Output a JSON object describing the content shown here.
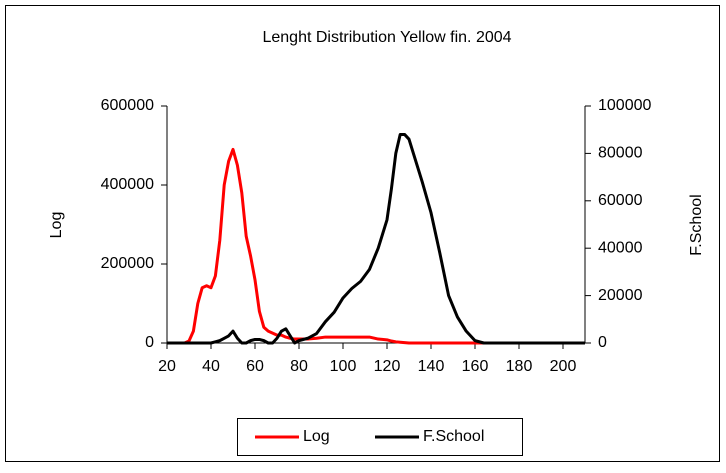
{
  "chart_data": {
    "type": "line",
    "title": "Lenght Distribution Yellow fin. 2004",
    "y_label": "Log",
    "y2_label": "F.School",
    "x": [
      20,
      24,
      28,
      30,
      32,
      34,
      36,
      38,
      40,
      42,
      44,
      46,
      48,
      50,
      52,
      54,
      56,
      58,
      60,
      62,
      64,
      66,
      68,
      70,
      72,
      74,
      76,
      78,
      80,
      84,
      88,
      92,
      96,
      100,
      104,
      108,
      112,
      116,
      120,
      122,
      124,
      126,
      128,
      130,
      132,
      136,
      140,
      144,
      148,
      152,
      156,
      160,
      164,
      170,
      180,
      190,
      200,
      210
    ],
    "xlim": [
      20,
      210
    ],
    "xticks": [
      20,
      40,
      60,
      80,
      100,
      120,
      140,
      160,
      180,
      200
    ],
    "ylim": [
      0,
      600000
    ],
    "yticks": [
      0,
      200000,
      400000,
      600000
    ],
    "y2lim": [
      0,
      100000
    ],
    "y2ticks": [
      0,
      20000,
      40000,
      60000,
      80000,
      100000
    ],
    "legend": "bottom",
    "series": [
      {
        "name": "Log",
        "color": "#ff0000",
        "values": [
          0,
          0,
          0,
          5000,
          30000,
          100000,
          140000,
          145000,
          140000,
          170000,
          260000,
          400000,
          460000,
          490000,
          450000,
          380000,
          270000,
          220000,
          160000,
          80000,
          40000,
          30000,
          25000,
          20000,
          20000,
          15000,
          12000,
          10000,
          10000,
          10000,
          12000,
          15000,
          15000,
          15000,
          15000,
          15000,
          15000,
          10000,
          8000,
          5000,
          3000,
          2000,
          1000,
          0,
          0,
          0,
          0,
          0,
          0,
          0,
          0,
          0,
          0,
          0,
          0,
          0,
          0,
          0
        ]
      },
      {
        "name": "F.School",
        "color": "#000000",
        "axis": "y2",
        "values": [
          0,
          0,
          0,
          0,
          0,
          0,
          0,
          0,
          0,
          500,
          1000,
          2000,
          3000,
          5000,
          2000,
          0,
          0,
          1000,
          1500,
          1500,
          1000,
          0,
          0,
          2000,
          5000,
          6000,
          3000,
          0,
          1000,
          2000,
          4000,
          9000,
          13000,
          19000,
          23000,
          26000,
          31000,
          40000,
          52000,
          65000,
          80000,
          88000,
          88000,
          86000,
          80000,
          68000,
          55000,
          38000,
          20000,
          11000,
          5000,
          1000,
          0,
          0,
          0,
          0,
          0,
          0
        ]
      }
    ]
  }
}
